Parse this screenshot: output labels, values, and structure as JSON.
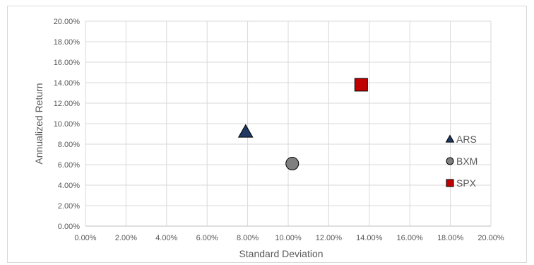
{
  "chart_data": {
    "type": "scatter",
    "xlabel": "Standard Deviation",
    "ylabel": "Annualized Return",
    "xlim": [
      0,
      0.2
    ],
    "ylim": [
      0,
      0.2
    ],
    "xticks": [
      "0.00%",
      "2.00%",
      "4.00%",
      "6.00%",
      "8.00%",
      "10.00%",
      "12.00%",
      "14.00%",
      "16.00%",
      "18.00%",
      "20.00%"
    ],
    "yticks": [
      "0.00%",
      "2.00%",
      "4.00%",
      "6.00%",
      "8.00%",
      "10.00%",
      "12.00%",
      "14.00%",
      "16.00%",
      "18.00%",
      "20.00%"
    ],
    "grid": true,
    "legend_position": "right",
    "series": [
      {
        "name": "ARS",
        "marker": "triangle",
        "color": "#1f3864",
        "x": 0.079,
        "y": 0.092
      },
      {
        "name": "BXM",
        "marker": "circle",
        "color": "#7f7f7f",
        "x": 0.102,
        "y": 0.061
      },
      {
        "name": "SPX",
        "marker": "square",
        "color": "#c00000",
        "x": 0.136,
        "y": 0.138
      }
    ]
  }
}
